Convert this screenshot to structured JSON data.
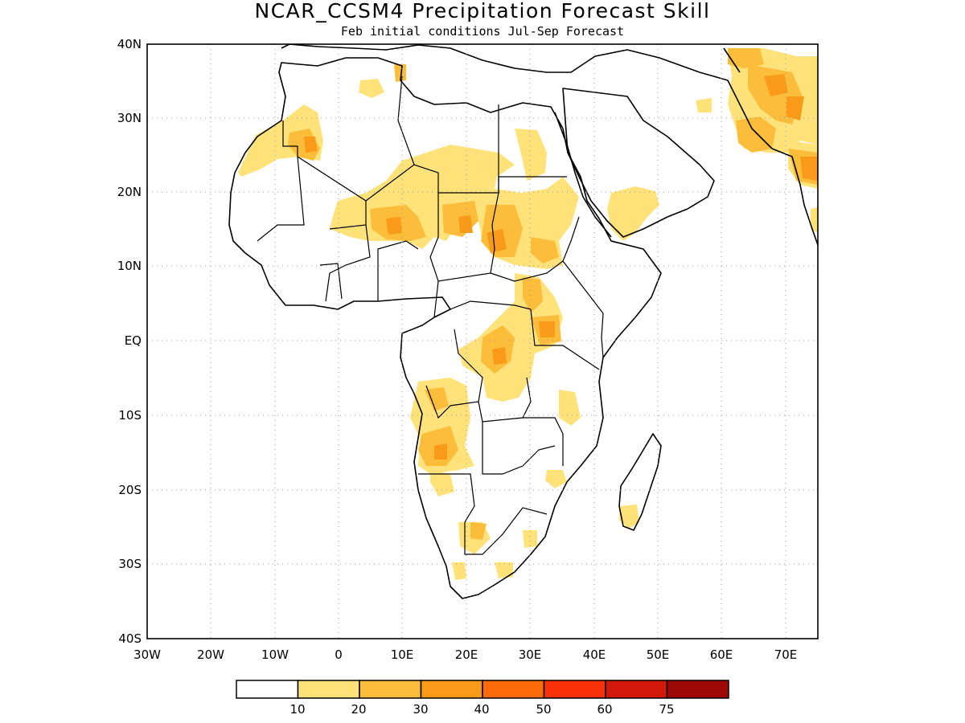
{
  "title": "NCAR_CCSM4 Precipitation Forecast Skill",
  "subtitle": "Feb initial conditions  Jul-Sep Forecast",
  "axes": {
    "lat_labels": [
      "40N",
      "30N",
      "20N",
      "10N",
      "EQ",
      "10S",
      "20S",
      "30S",
      "40S"
    ],
    "lon_labels": [
      "30W",
      "20W",
      "10W",
      "0",
      "10E",
      "20E",
      "30E",
      "40E",
      "50E",
      "60E",
      "70E"
    ]
  },
  "colorbar": {
    "labels": [
      "10",
      "20",
      "30",
      "40",
      "50",
      "60",
      "75"
    ],
    "colors": [
      "#ffffff",
      "#ffe37a",
      "#fcbd3b",
      "#f99b18",
      "#fd6a0a",
      "#f73008",
      "#d2180a",
      "#a00808"
    ]
  },
  "colors": {
    "frame": "#000000",
    "grid": "#999999",
    "coast": "#000000"
  }
}
